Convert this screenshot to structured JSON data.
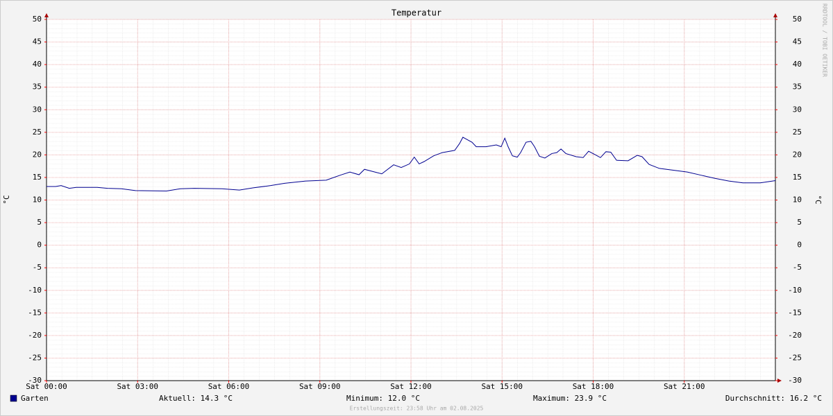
{
  "chart_data": {
    "type": "line",
    "title": "Temperatur",
    "y_label": "°C",
    "y2_label": "°C",
    "watermark": "RRDTOOL / TOBI OETIKER",
    "footer": "Erstellungszeit: 23:58 Uhr am 02.08.2025",
    "xlim": [
      0,
      24
    ],
    "xticks": [
      {
        "value": 0,
        "label": "Sat 00:00"
      },
      {
        "value": 3,
        "label": "Sat 03:00"
      },
      {
        "value": 6,
        "label": "Sat 06:00"
      },
      {
        "value": 9,
        "label": "Sat 09:00"
      },
      {
        "value": 12,
        "label": "Sat 12:00"
      },
      {
        "value": 15,
        "label": "Sat 15:00"
      },
      {
        "value": 18,
        "label": "Sat 18:00"
      },
      {
        "value": 21,
        "label": "Sat 21:00"
      }
    ],
    "ylim": [
      -30,
      50
    ],
    "yticks": [
      -30,
      -25,
      -20,
      -15,
      -10,
      -5,
      0,
      5,
      10,
      15,
      20,
      25,
      30,
      35,
      40,
      45,
      50
    ],
    "y2lim": [
      -30,
      50
    ],
    "y2ticks": [
      -30,
      -25,
      -20,
      -15,
      -10,
      -5,
      0,
      5,
      10,
      15,
      20,
      25,
      30,
      35,
      40,
      45,
      50
    ],
    "grid": true,
    "x": [
      0,
      0.3,
      0.48,
      0.75,
      0.98,
      1.67,
      2.01,
      2.47,
      2.93,
      3.95,
      4.41,
      4.87,
      5.78,
      6.35,
      6.81,
      7.38,
      7.84,
      8.53,
      9.21,
      9.67,
      9.99,
      10.29,
      10.47,
      11.04,
      11.43,
      11.68,
      11.95,
      12.11,
      12.27,
      12.43,
      12.75,
      13.03,
      13.44,
      13.6,
      13.71,
      14.01,
      14.15,
      14.47,
      14.81,
      14.97,
      15.09,
      15.2,
      15.34,
      15.5,
      15.61,
      15.79,
      15.95,
      16.07,
      16.23,
      16.41,
      16.64,
      16.8,
      16.94,
      17.1,
      17.44,
      17.67,
      17.85,
      18.08,
      18.24,
      18.42,
      18.58,
      18.77,
      19.15,
      19.45,
      19.61,
      19.84,
      20.18,
      21.1,
      21.55,
      22.01,
      22.47,
      22.93,
      23.5,
      24
    ],
    "series": [
      {
        "name": "Garten",
        "color": "#000090",
        "values": [
          13.0,
          13.0,
          13.2,
          12.6,
          12.8,
          12.8,
          12.6,
          12.5,
          12.1,
          12.0,
          12.5,
          12.6,
          12.5,
          12.2,
          12.7,
          13.2,
          13.7,
          14.2,
          14.4,
          15.5,
          16.2,
          15.6,
          16.8,
          15.8,
          17.8,
          17.2,
          18.0,
          19.5,
          18.0,
          18.5,
          19.8,
          20.5,
          21.0,
          22.5,
          23.9,
          22.8,
          21.8,
          21.8,
          22.2,
          21.8,
          23.7,
          21.8,
          19.8,
          19.5,
          20.5,
          22.8,
          23.0,
          21.8,
          19.7,
          19.3,
          20.3,
          20.5,
          21.3,
          20.3,
          19.6,
          19.4,
          20.8,
          20.0,
          19.4,
          20.7,
          20.6,
          18.8,
          18.7,
          19.9,
          19.6,
          17.9,
          17.0,
          16.2,
          15.5,
          14.8,
          14.2,
          13.8,
          13.8,
          14.3
        ]
      }
    ],
    "stats": [
      "Aktuell: 14.3 °C",
      "Minimum: 12.0 °C",
      "Maximum: 23.9 °C",
      "Durchschnitt: 16.2 °C"
    ]
  }
}
